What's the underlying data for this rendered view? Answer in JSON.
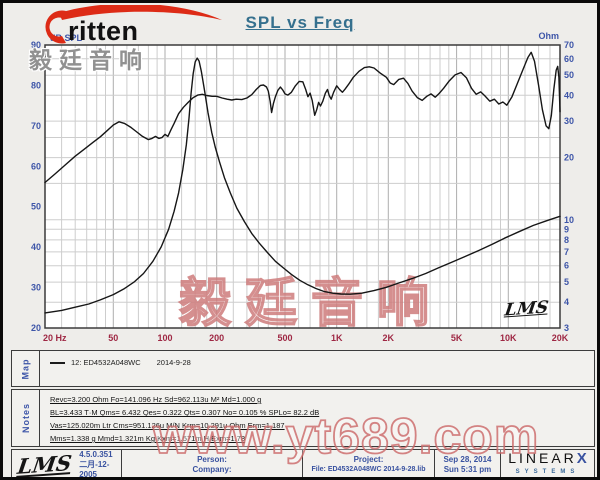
{
  "header": {
    "title": "SPL vs Freq",
    "brand_text": "ritten",
    "brand_cn": "毅廷音响"
  },
  "chart_data": {
    "type": "line",
    "title": "SPL vs Freq",
    "grid": true,
    "x_axis": {
      "label": "Hz",
      "scale": "log",
      "min": 20,
      "max": 20000,
      "ticks": [
        "20 Hz",
        "50",
        "100",
        "200",
        "500",
        "1K",
        "2K",
        "5K",
        "10K",
        "20K"
      ],
      "tick_values": [
        20,
        50,
        100,
        200,
        500,
        1000,
        2000,
        5000,
        10000,
        20000
      ]
    },
    "y_left": {
      "label": "dB SPL",
      "scale": "linear",
      "min": 20,
      "max": 90,
      "ticks": [
        90,
        80,
        70,
        60,
        50,
        40,
        30,
        20
      ]
    },
    "y_right": {
      "label": "Ohm",
      "scale": "log",
      "min": 3,
      "max": 70,
      "ticks": [
        70,
        60,
        50,
        40,
        30,
        20,
        10,
        9,
        8,
        7,
        6,
        5,
        4,
        3
      ],
      "gridlines": [
        3,
        4,
        5,
        6,
        7,
        8,
        9,
        10,
        15,
        20,
        25,
        30,
        40,
        50,
        60,
        70
      ]
    },
    "inner_logo": "LMS",
    "series": [
      {
        "name": "SPL",
        "axis": "left",
        "unit": "dB",
        "points": [
          [
            20,
            56
          ],
          [
            23,
            58.2
          ],
          [
            26,
            60.2
          ],
          [
            30,
            62.5
          ],
          [
            34,
            64.3
          ],
          [
            38,
            65.9
          ],
          [
            42,
            67.3
          ],
          [
            46,
            68.8
          ],
          [
            50,
            70.2
          ],
          [
            54,
            71
          ],
          [
            58,
            70.6
          ],
          [
            63,
            69.7
          ],
          [
            68,
            68.6
          ],
          [
            74,
            67.4
          ],
          [
            80,
            66.6
          ],
          [
            84,
            66.9
          ],
          [
            88,
            67.4
          ],
          [
            92,
            66.9
          ],
          [
            96,
            67.1
          ],
          [
            100,
            67.9
          ],
          [
            104,
            67.4
          ],
          [
            108,
            68.9
          ],
          [
            113,
            70.6
          ],
          [
            120,
            73
          ],
          [
            128,
            74.6
          ],
          [
            137,
            75.9
          ],
          [
            146,
            77
          ],
          [
            155,
            77.6
          ],
          [
            165,
            77.8
          ],
          [
            175,
            77.5
          ],
          [
            188,
            77.3
          ],
          [
            200,
            77.3
          ],
          [
            215,
            76.9
          ],
          [
            230,
            76.6
          ],
          [
            245,
            76.4
          ],
          [
            260,
            76.6
          ],
          [
            280,
            76.5
          ],
          [
            300,
            76.9
          ],
          [
            320,
            77.7
          ],
          [
            340,
            79
          ],
          [
            360,
            80
          ],
          [
            375,
            80.1
          ],
          [
            390,
            79.6
          ],
          [
            400,
            78.6
          ],
          [
            410,
            76
          ],
          [
            418,
            73.3
          ],
          [
            428,
            75.5
          ],
          [
            440,
            77.2
          ],
          [
            455,
            78.8
          ],
          [
            470,
            79.6
          ],
          [
            485,
            78.9
          ],
          [
            500,
            77.9
          ],
          [
            520,
            77.6
          ],
          [
            545,
            78.3
          ],
          [
            575,
            79.9
          ],
          [
            605,
            81
          ],
          [
            635,
            80.9
          ],
          [
            660,
            79
          ],
          [
            680,
            77.2
          ],
          [
            700,
            78.1
          ],
          [
            720,
            76.3
          ],
          [
            745,
            72.6
          ],
          [
            765,
            74
          ],
          [
            785,
            75.8
          ],
          [
            805,
            74.9
          ],
          [
            830,
            76.1
          ],
          [
            860,
            78.1
          ],
          [
            885,
            79
          ],
          [
            905,
            77.5
          ],
          [
            930,
            76.6
          ],
          [
            960,
            78.3
          ],
          [
            1000,
            79.9
          ],
          [
            1040,
            79
          ],
          [
            1080,
            78.3
          ],
          [
            1120,
            79.1
          ],
          [
            1170,
            80.2
          ],
          [
            1250,
            82
          ],
          [
            1350,
            83.5
          ],
          [
            1450,
            84.4
          ],
          [
            1550,
            84.6
          ],
          [
            1650,
            84.3
          ],
          [
            1800,
            83
          ],
          [
            1950,
            82
          ],
          [
            2050,
            80.6
          ],
          [
            2150,
            80.2
          ],
          [
            2300,
            81.5
          ],
          [
            2450,
            81.8
          ],
          [
            2600,
            80.5
          ],
          [
            2750,
            78.6
          ],
          [
            2950,
            77
          ],
          [
            3150,
            76.3
          ],
          [
            3350,
            77.3
          ],
          [
            3550,
            77.9
          ],
          [
            3750,
            77.1
          ],
          [
            3950,
            78
          ],
          [
            4200,
            79.3
          ],
          [
            4500,
            81
          ],
          [
            4900,
            82.6
          ],
          [
            5300,
            83.2
          ],
          [
            5700,
            81.9
          ],
          [
            6100,
            79.3
          ],
          [
            6500,
            77.8
          ],
          [
            6900,
            78.4
          ],
          [
            7300,
            77.4
          ],
          [
            7800,
            76.1
          ],
          [
            8300,
            76.6
          ],
          [
            8800,
            75.4
          ],
          [
            9300,
            75.9
          ],
          [
            9800,
            75.1
          ],
          [
            10500,
            77.2
          ],
          [
            11300,
            80.5
          ],
          [
            12200,
            84
          ],
          [
            13000,
            86.9
          ],
          [
            13600,
            88.2
          ],
          [
            14200,
            86
          ],
          [
            15000,
            80
          ],
          [
            15800,
            74
          ],
          [
            16600,
            70
          ],
          [
            17200,
            69.3
          ],
          [
            17800,
            72.5
          ],
          [
            18400,
            79
          ],
          [
            19000,
            83.8
          ],
          [
            19400,
            84.7
          ],
          [
            19700,
            82
          ],
          [
            20000,
            73.5
          ]
        ]
      },
      {
        "name": "Impedance",
        "axis": "right",
        "unit": "Ohm",
        "points": [
          [
            20,
            3.55
          ],
          [
            25,
            3.65
          ],
          [
            30,
            3.78
          ],
          [
            36,
            3.92
          ],
          [
            42,
            4.1
          ],
          [
            50,
            4.35
          ],
          [
            58,
            4.65
          ],
          [
            66,
            5
          ],
          [
            75,
            5.5
          ],
          [
            85,
            6.3
          ],
          [
            95,
            7.4
          ],
          [
            105,
            9
          ],
          [
            113,
            11
          ],
          [
            120,
            13.5
          ],
          [
            127,
            17.5
          ],
          [
            133,
            23
          ],
          [
            138,
            31
          ],
          [
            142,
            41
          ],
          [
            146,
            51
          ],
          [
            150,
            58
          ],
          [
            154,
            60.5
          ],
          [
            158,
            58.5
          ],
          [
            163,
            52
          ],
          [
            170,
            42
          ],
          [
            178,
            33
          ],
          [
            187,
            26.5
          ],
          [
            196,
            22.5
          ],
          [
            208,
            19
          ],
          [
            222,
            16
          ],
          [
            240,
            13.5
          ],
          [
            262,
            11.4
          ],
          [
            290,
            9.8
          ],
          [
            320,
            8.6
          ],
          [
            355,
            7.7
          ],
          [
            395,
            6.95
          ],
          [
            440,
            6.3
          ],
          [
            490,
            5.85
          ],
          [
            545,
            5.45
          ],
          [
            610,
            5.1
          ],
          [
            680,
            4.85
          ],
          [
            760,
            4.65
          ],
          [
            850,
            4.5
          ],
          [
            950,
            4.42
          ],
          [
            1060,
            4.38
          ],
          [
            1200,
            4.37
          ],
          [
            1400,
            4.42
          ],
          [
            1650,
            4.55
          ],
          [
            1950,
            4.72
          ],
          [
            2300,
            4.95
          ],
          [
            2750,
            5.2
          ],
          [
            3300,
            5.5
          ],
          [
            3900,
            5.85
          ],
          [
            4700,
            6.25
          ],
          [
            5600,
            6.65
          ],
          [
            6700,
            7.1
          ],
          [
            8000,
            7.6
          ],
          [
            9500,
            8.15
          ],
          [
            11500,
            8.75
          ],
          [
            14000,
            9.4
          ],
          [
            17000,
            9.95
          ],
          [
            20000,
            10.4
          ]
        ]
      }
    ]
  },
  "map_section": {
    "label": "Map",
    "legend_name": "12: ED4532A048WC",
    "legend_date": "2014-9-28"
  },
  "notes_section": {
    "label": "Notes",
    "lines": [
      "Revc=3.200 Ohm  Fo=141.096 Hz  Sd=962.113u M²  Md=1.000 g",
      "BL=3.433 T·M  Qms= 6.432  Qes= 0.322  Qts= 0.307  No= 0.105 %  SPLo= 82.2 dB",
      "Vas=125.020m Ltr  Cms=951.126u M/N  Krm=10.291u Ohm  Erm=1.187",
      "Mms=1.338 g  Mmd=1.321m Kg  Kxm=1.571m H  Exm=1.78"
    ]
  },
  "footer": {
    "lms_logo": "LMS",
    "version": "4.5.0.351",
    "version_date": "二月-12-2005",
    "person_label": "Person:",
    "company_label": "Company:",
    "project_label": "Project:",
    "file_label": "File: ED4532A048WC   2014-9-28.lib",
    "date_line1": "Sep 28, 2014",
    "date_line2": "Sun  5:31 pm",
    "linearx_name": "LINEAR",
    "linearx_x": "X",
    "linearx_systems": "SYSTEMS"
  },
  "watermarks": {
    "chart_cn": "毅廷音响",
    "site": "www.yt689.com"
  },
  "colors": {
    "title": "#35708e",
    "axis_blue": "#3d55a8",
    "axis_red": "#9e2743",
    "curve": "#161616",
    "grid": "#cdcdcd",
    "grid_major": "#adadad",
    "brand_red": "#dd2b16",
    "watermark_red": "#cb6767",
    "page_bg": "#eeedea"
  }
}
